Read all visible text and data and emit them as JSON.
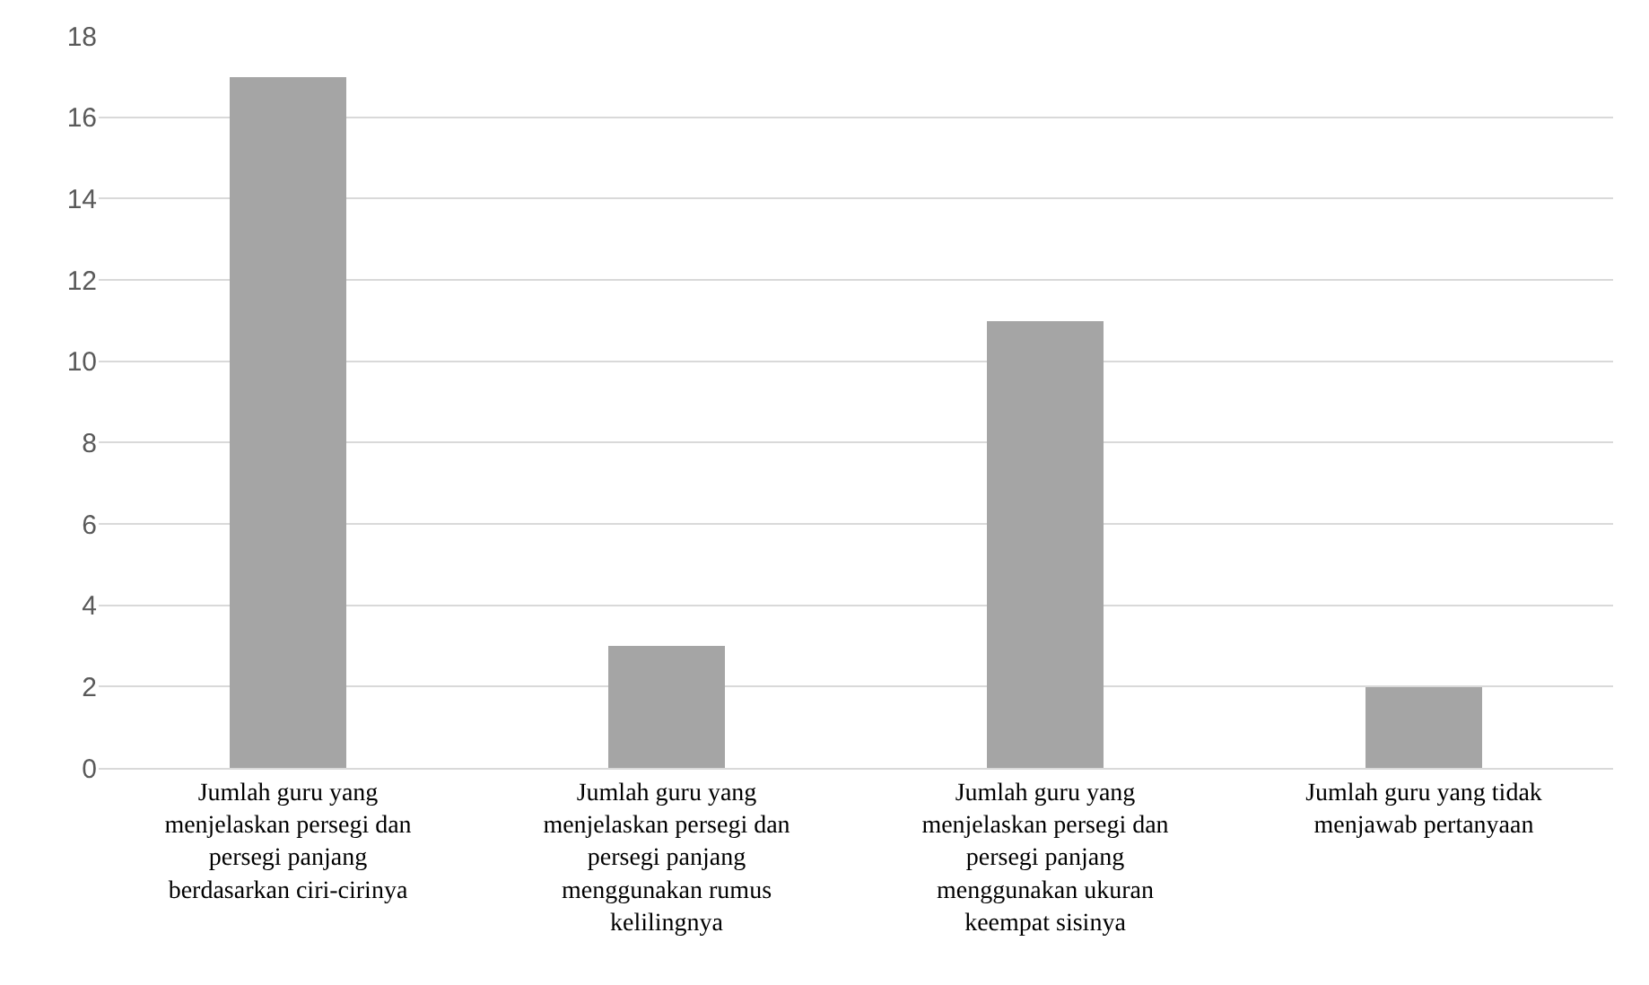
{
  "chart_data": {
    "type": "bar",
    "categories": [
      "Jumlah guru yang menjelaskan persegi dan persegi panjang berdasarkan ciri-cirinya",
      "Jumlah guru yang menjelaskan persegi dan persegi panjang menggunakan rumus kelilingnya",
      "Jumlah guru yang menjelaskan persegi dan persegi panjang menggunakan ukuran keempat sisinya",
      "Jumlah guru yang tidak menjawab pertanyaan"
    ],
    "values": [
      17,
      3,
      11,
      2
    ],
    "color": "#a5a5a5",
    "ylim": [
      0,
      18
    ],
    "yticks": [
      0,
      2,
      4,
      6,
      8,
      10,
      12,
      14,
      16,
      18
    ],
    "grid": "y",
    "legend": false
  }
}
